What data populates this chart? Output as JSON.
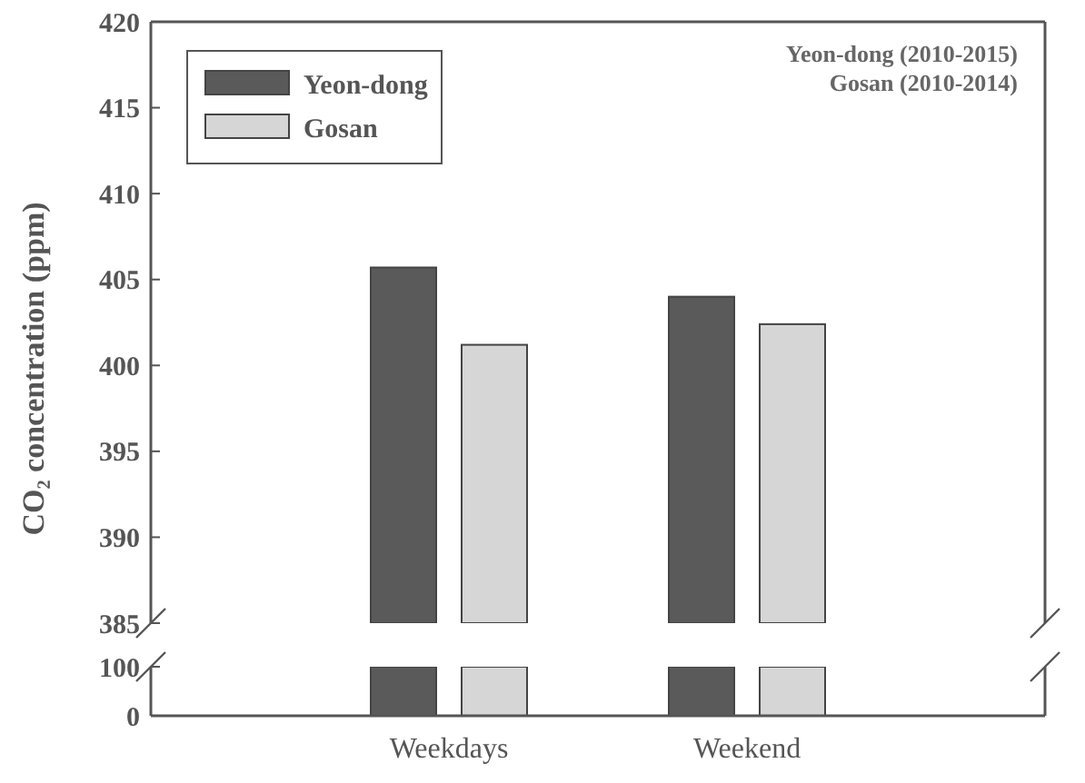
{
  "chart_data": [
    {
      "type": "bar",
      "ylabel": "CO₂ concentration (ppm)",
      "categories": [
        "Weekdays",
        "Weekend"
      ],
      "series": [
        {
          "name": "Yeon-dong",
          "color": "#5a5a5a",
          "values": [
            405.7,
            404.0
          ]
        },
        {
          "name": "Gosan",
          "color": "#d6d6d6",
          "values": [
            401.2,
            402.4
          ]
        }
      ],
      "ylim": [
        385,
        420
      ],
      "yticks": [
        385,
        390,
        395,
        400,
        405,
        410,
        415,
        420
      ],
      "legend": "top left",
      "annotations": [
        "Yeon-dong (2010-2015)",
        "Gosan (2010-2014)"
      ]
    },
    {
      "type": "bar",
      "categories": [
        null,
        null
      ],
      "tick_labels": "y",
      "series": [
        {
          "color": "#5a5a5a",
          "values": [
            100,
            100
          ]
        },
        {
          "color": "#d6d6d6",
          "values": [
            100,
            100
          ]
        }
      ],
      "ylim": [
        0,
        100
      ],
      "yticks": [
        0,
        100
      ]
    }
  ]
}
